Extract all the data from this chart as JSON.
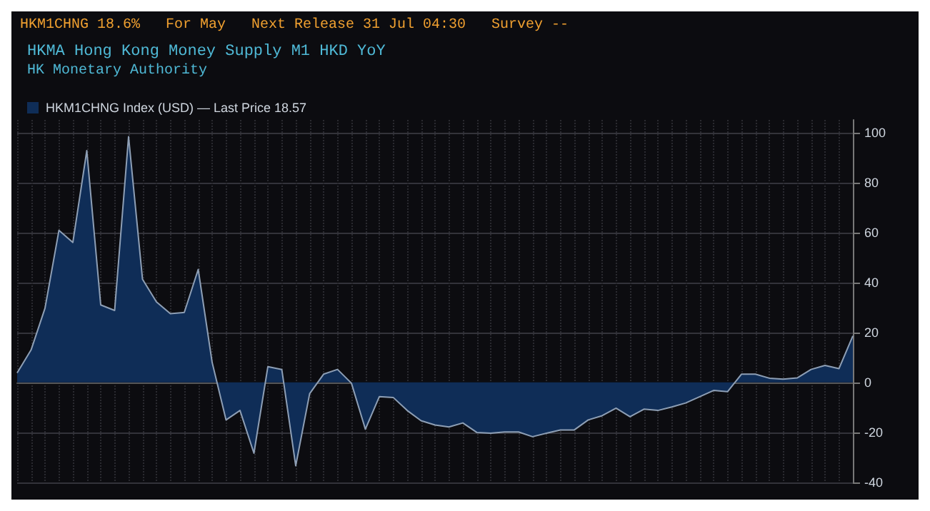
{
  "chart_data": {
    "type": "area",
    "title": "HKMA Hong Kong Money Supply M1 HKD YoY",
    "subtitle": "HK Monetary Authority",
    "annotations": [
      "HKM1CHNG 18.6%",
      "For May",
      "Next Release 31 Jul 04:30",
      "Survey --"
    ],
    "categories": [
      null,
      null,
      null,
      null,
      null,
      null,
      null,
      null,
      null,
      null,
      null,
      null,
      null,
      null,
      null,
      null,
      null,
      null,
      null,
      null,
      null,
      null,
      null,
      null,
      null,
      null,
      null,
      null,
      null,
      null,
      null,
      null,
      null,
      null,
      null,
      null,
      null,
      null,
      null,
      null,
      null,
      null,
      null,
      null,
      null,
      null,
      null,
      null,
      null,
      null,
      null,
      null,
      null,
      null,
      null,
      null,
      null,
      null,
      null,
      null,
      null
    ],
    "series": [
      {
        "name": "HKM1CHNG Index (USD) — Last Price 18.57",
        "color": "#0f2d57",
        "values": [
          3.8,
          13,
          29.7,
          60.8,
          56,
          92.7,
          31,
          28.8,
          98.3,
          41.3,
          32.2,
          27.5,
          28,
          45.2,
          8,
          -15,
          -11.2,
          -28.3,
          6.3,
          5.2,
          -33.3,
          -4.5,
          3.3,
          5.2,
          -0.3,
          -18.7,
          -5.7,
          -6,
          -11.2,
          -15.3,
          -17,
          -17.8,
          -16.2,
          -20,
          -20.3,
          -19.8,
          -19.8,
          -21.7,
          -20.3,
          -19,
          -19,
          -15,
          -13.3,
          -10.3,
          -13.7,
          -10.7,
          -11.2,
          -9.8,
          -8.2,
          -5.7,
          -3.2,
          -3.7,
          3.3,
          3.3,
          1.7,
          1.3,
          1.8,
          5.2,
          6.8,
          5.5,
          18.6
        ]
      }
    ],
    "ylim": [
      -40,
      105
    ],
    "yticks": [
      -40,
      -20,
      0,
      20,
      40,
      60,
      80,
      100
    ],
    "grid": true,
    "legend": "top left",
    "tick_labels": "y",
    "marker": "none",
    "line_style": "solid"
  }
}
